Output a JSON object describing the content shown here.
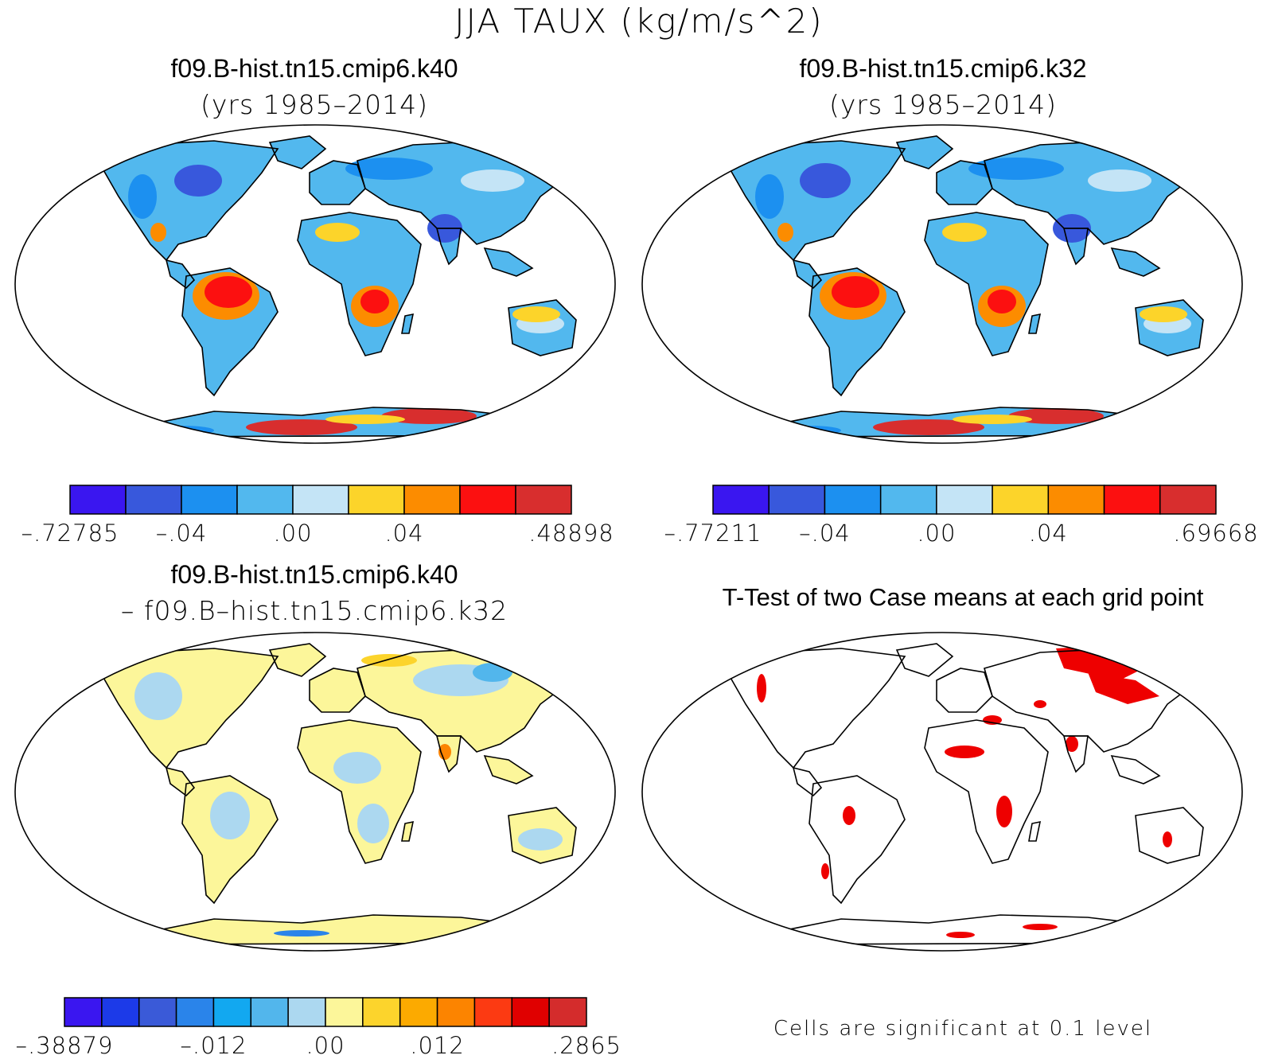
{
  "figure": {
    "title": "JJA TAUX (kg/m/s^2)"
  },
  "panels": [
    {
      "id": "case1",
      "title_line1": "f09.B-hist.tn15.cmip6.k40",
      "title_line2": "(yrs 1985–2014)"
    },
    {
      "id": "case2",
      "title_line1": "f09.B-hist.tn15.cmip6.k32",
      "title_line2": "(yrs 1985–2014)"
    },
    {
      "id": "difference",
      "title_line1": "f09.B-hist.tn15.cmip6.k40",
      "title_line2": "– f09.B–hist.tn15.cmip6.k32"
    },
    {
      "id": "ttest",
      "title_line1": "T-Test of two Case means at each grid point",
      "note": "Cells are significant at 0.1 level"
    }
  ],
  "colorbars": [
    {
      "id": "case1",
      "colors": [
        "#3a16f0",
        "#3858dc",
        "#1c90f0",
        "#52b8ee",
        "#c4e4f6",
        "#fcd42a",
        "#fc8c00",
        "#fc1010",
        "#d82e2e"
      ],
      "ticks": [
        {
          "label": "-.72785",
          "edge": 0
        },
        {
          "label": "-.04",
          "edge": 2
        },
        {
          "label": ".00",
          "edge": 4
        },
        {
          "label": ".04",
          "edge": 6
        },
        {
          "label": ".48898",
          "edge": 9
        }
      ]
    },
    {
      "id": "case2",
      "colors": [
        "#3a16f0",
        "#3858dc",
        "#1c90f0",
        "#52b8ee",
        "#c4e4f6",
        "#fcd42a",
        "#fc8c00",
        "#fc1010",
        "#d82e2e"
      ],
      "ticks": [
        {
          "label": "-.77211",
          "edge": 0
        },
        {
          "label": "-.04",
          "edge": 2
        },
        {
          "label": ".00",
          "edge": 4
        },
        {
          "label": ".04",
          "edge": 6
        },
        {
          "label": ".69668",
          "edge": 9
        }
      ]
    },
    {
      "id": "difference",
      "colors": [
        "#3a16f0",
        "#1c3ae8",
        "#3a5ad8",
        "#2a84ea",
        "#12a8f0",
        "#52b6ec",
        "#acd8f0",
        "#fcf69a",
        "#fcd42c",
        "#fcaa00",
        "#fc8400",
        "#fc3a12",
        "#e00000",
        "#d42c2c"
      ],
      "ticks": [
        {
          "label": "-.38879",
          "edge": 0
        },
        {
          "label": "-.012",
          "edge": 4
        },
        {
          "label": ".00",
          "edge": 7
        },
        {
          "label": ".012",
          "edge": 10
        },
        {
          "label": ".2865",
          "edge": 14
        }
      ]
    }
  ],
  "legend_colors": {
    "significance": "#ee0000",
    "land_outline": "#000000"
  }
}
